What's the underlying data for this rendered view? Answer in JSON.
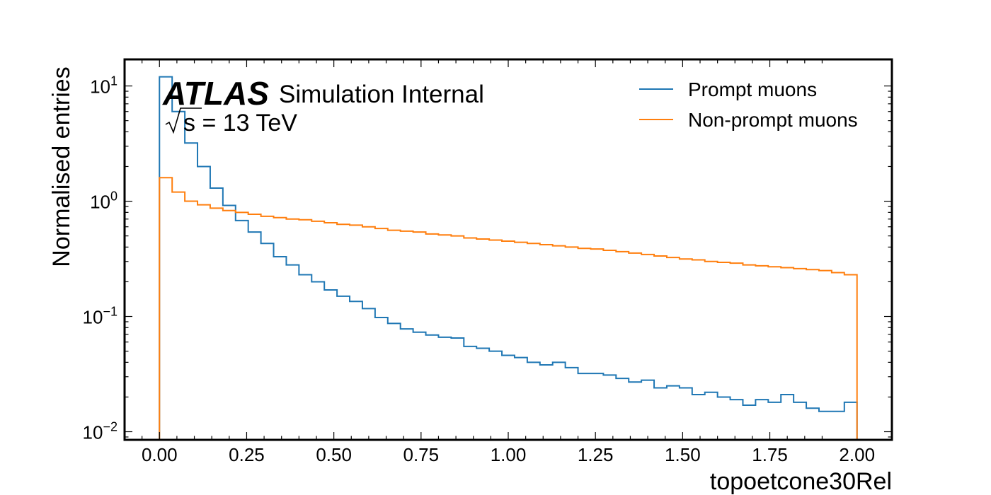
{
  "atlas": {
    "brand": "ATLAS",
    "label": "Simulation Internal",
    "energy_value": "s = 13 TeV"
  },
  "chart_data": {
    "type": "histogram-step",
    "xlabel": "topoetcone30Rel",
    "ylabel": "Normalised entries",
    "xlim": [
      -0.1,
      2.1
    ],
    "ylim": [
      0.0085,
      17
    ],
    "yscale": "log",
    "x_ticks": [
      0.0,
      0.25,
      0.5,
      0.75,
      1.0,
      1.25,
      1.5,
      1.75,
      2.0
    ],
    "x_tick_labels": [
      "0.00",
      "0.25",
      "0.50",
      "0.75",
      "1.00",
      "1.25",
      "1.50",
      "1.75",
      "2.00"
    ],
    "y_ticks": [
      0.01,
      0.1,
      1,
      10
    ],
    "y_tick_labels": [
      {
        "base": "10",
        "exp": "−2"
      },
      {
        "base": "10",
        "exp": "−1"
      },
      {
        "base": "10",
        "exp": "0"
      },
      {
        "base": "10",
        "exp": "1"
      }
    ],
    "bin_edges_range": [
      0.0,
      2.0
    ],
    "bin_count": 55,
    "legend_position": "top-right",
    "series": [
      {
        "name": "Prompt muons",
        "color": "#1f77b4",
        "values": [
          12.0,
          6.0,
          3.2,
          2.0,
          1.3,
          0.92,
          0.68,
          0.54,
          0.43,
          0.33,
          0.28,
          0.23,
          0.2,
          0.17,
          0.15,
          0.135,
          0.117,
          0.098,
          0.087,
          0.078,
          0.073,
          0.069,
          0.066,
          0.065,
          0.055,
          0.053,
          0.05,
          0.046,
          0.044,
          0.04,
          0.038,
          0.04,
          0.036,
          0.032,
          0.032,
          0.031,
          0.029,
          0.027,
          0.028,
          0.024,
          0.025,
          0.024,
          0.021,
          0.022,
          0.02,
          0.019,
          0.017,
          0.019,
          0.018,
          0.021,
          0.018,
          0.016,
          0.015,
          0.015,
          0.018
        ]
      },
      {
        "name": "Non-prompt muons",
        "color": "#ff7f0e",
        "values": [
          1.6,
          1.2,
          1.0,
          0.93,
          0.87,
          0.83,
          0.8,
          0.77,
          0.74,
          0.72,
          0.7,
          0.69,
          0.67,
          0.65,
          0.63,
          0.62,
          0.6,
          0.58,
          0.56,
          0.55,
          0.54,
          0.52,
          0.51,
          0.5,
          0.48,
          0.47,
          0.46,
          0.45,
          0.44,
          0.43,
          0.42,
          0.41,
          0.4,
          0.39,
          0.385,
          0.375,
          0.365,
          0.355,
          0.345,
          0.335,
          0.325,
          0.315,
          0.31,
          0.3,
          0.295,
          0.29,
          0.28,
          0.275,
          0.27,
          0.265,
          0.26,
          0.255,
          0.25,
          0.24,
          0.23
        ]
      }
    ]
  }
}
